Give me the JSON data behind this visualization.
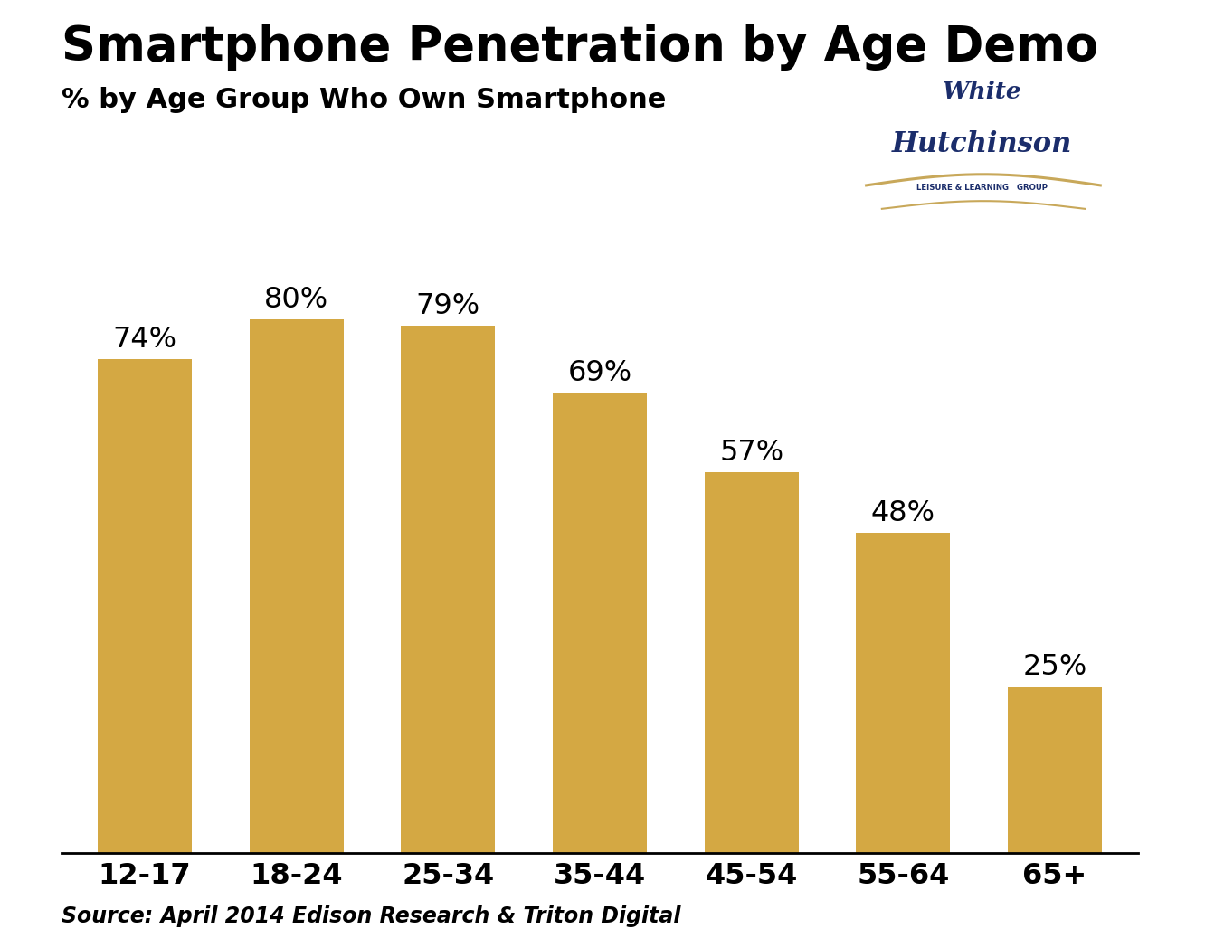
{
  "title": "Smartphone Penetration by Age Demo",
  "subtitle": "% by Age Group Who Own Smartphone",
  "categories": [
    "12-17",
    "18-24",
    "25-34",
    "35-44",
    "45-54",
    "55-64",
    "65+"
  ],
  "values": [
    74,
    80,
    79,
    69,
    57,
    48,
    25
  ],
  "bar_color": "#D4A843",
  "background_color": "#FFFFFF",
  "title_fontsize": 38,
  "subtitle_fontsize": 22,
  "label_fontsize": 23,
  "tick_fontsize": 23,
  "source_text": "Source: April 2014 Edison Research & Triton Digital",
  "source_fontsize": 17,
  "ylim": [
    0,
    88
  ]
}
